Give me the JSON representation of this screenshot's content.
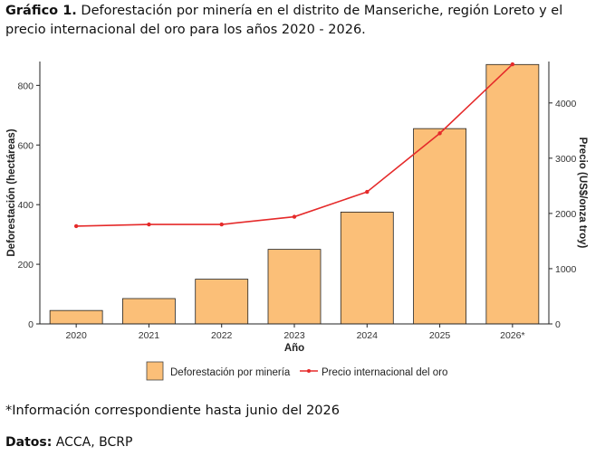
{
  "header": {
    "label": "Gráfico  1.",
    "text": "Deforestación por minería en el distrito de Manseriche, región Loreto y el precio internacional del oro para los años 2020 - 2026."
  },
  "chart_data": {
    "type": "bar+line",
    "categories": [
      "2020",
      "2021",
      "2022",
      "2023",
      "2024",
      "2025",
      "2026*"
    ],
    "xlabel": "Año",
    "series": [
      {
        "name": "Deforestación por minería",
        "type": "bar",
        "axis": "left",
        "values": [
          45,
          85,
          150,
          250,
          375,
          655,
          870
        ],
        "color": "#fbbf78"
      },
      {
        "name": "Precio internacional del oro",
        "type": "line",
        "axis": "right",
        "values": [
          1770,
          1800,
          1800,
          1940,
          2390,
          3450,
          4700
        ],
        "color": "#e52a2a"
      }
    ],
    "ylabel_left": "Deforestación (hectáreas)",
    "ylim_left": [
      0,
      880
    ],
    "yticks_left": [
      0,
      200,
      400,
      600,
      800
    ],
    "ylabel_right": "Precio (US$/onza troy)",
    "ylim_right": [
      0,
      4750
    ],
    "yticks_right": [
      0,
      1000,
      2000,
      3000,
      4000
    ],
    "legend_position": "bottom",
    "grid": false
  },
  "footer": {
    "note": "*Información correspondiente hasta junio del 2026",
    "source_label": "Datos:",
    "source_text": "ACCA, BCRP"
  }
}
